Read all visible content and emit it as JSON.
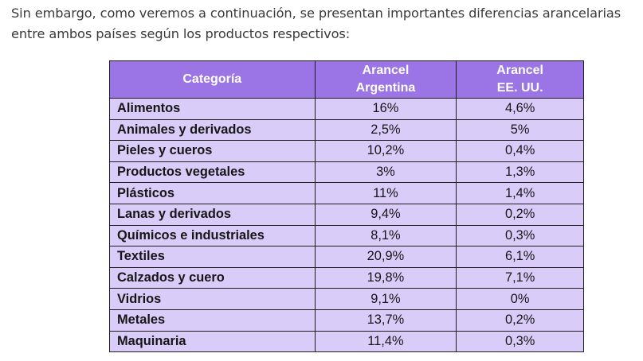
{
  "intro_text": "Sin embargo, como veremos a continuación, se presentan importantes diferencias arancelarias entre ambos países según los productos respectivos:",
  "table": {
    "headers": {
      "category": "Categoría",
      "argentina_line1": "Arancel",
      "argentina_line2": "Argentina",
      "usa_line1": "Arancel",
      "usa_line2": "EE. UU."
    },
    "rows": [
      {
        "category": "Alimentos",
        "argentina": "16%",
        "usa": "4,6%"
      },
      {
        "category": "Animales y derivados",
        "argentina": "2,5%",
        "usa": "5%"
      },
      {
        "category": "Pieles y cueros",
        "argentina": "10,2%",
        "usa": "0,4%"
      },
      {
        "category": "Productos vegetales",
        "argentina": "3%",
        "usa": "1,3%"
      },
      {
        "category": "Plásticos",
        "argentina": "11%",
        "usa": "1,4%"
      },
      {
        "category": "Lanas y derivados",
        "argentina": "9,4%",
        "usa": "0,2%"
      },
      {
        "category": "Químicos e industriales",
        "argentina": "8,1%",
        "usa": "0,3%"
      },
      {
        "category": "Textiles",
        "argentina": "20,9%",
        "usa": "6,1%"
      },
      {
        "category": "Calzados y cuero",
        "argentina": "19,8%",
        "usa": "7,1%"
      },
      {
        "category": "Vidrios",
        "argentina": "9,1%",
        "usa": "0%"
      },
      {
        "category": "Metales",
        "argentina": "13,7%",
        "usa": "0,2%"
      },
      {
        "category": "Maquinaria",
        "argentina": "11,4%",
        "usa": "0,3%"
      }
    ]
  },
  "colors": {
    "header_bg": "#9b74e6",
    "cell_bg": "#d9ccf9",
    "border": "#1e1e1e"
  }
}
